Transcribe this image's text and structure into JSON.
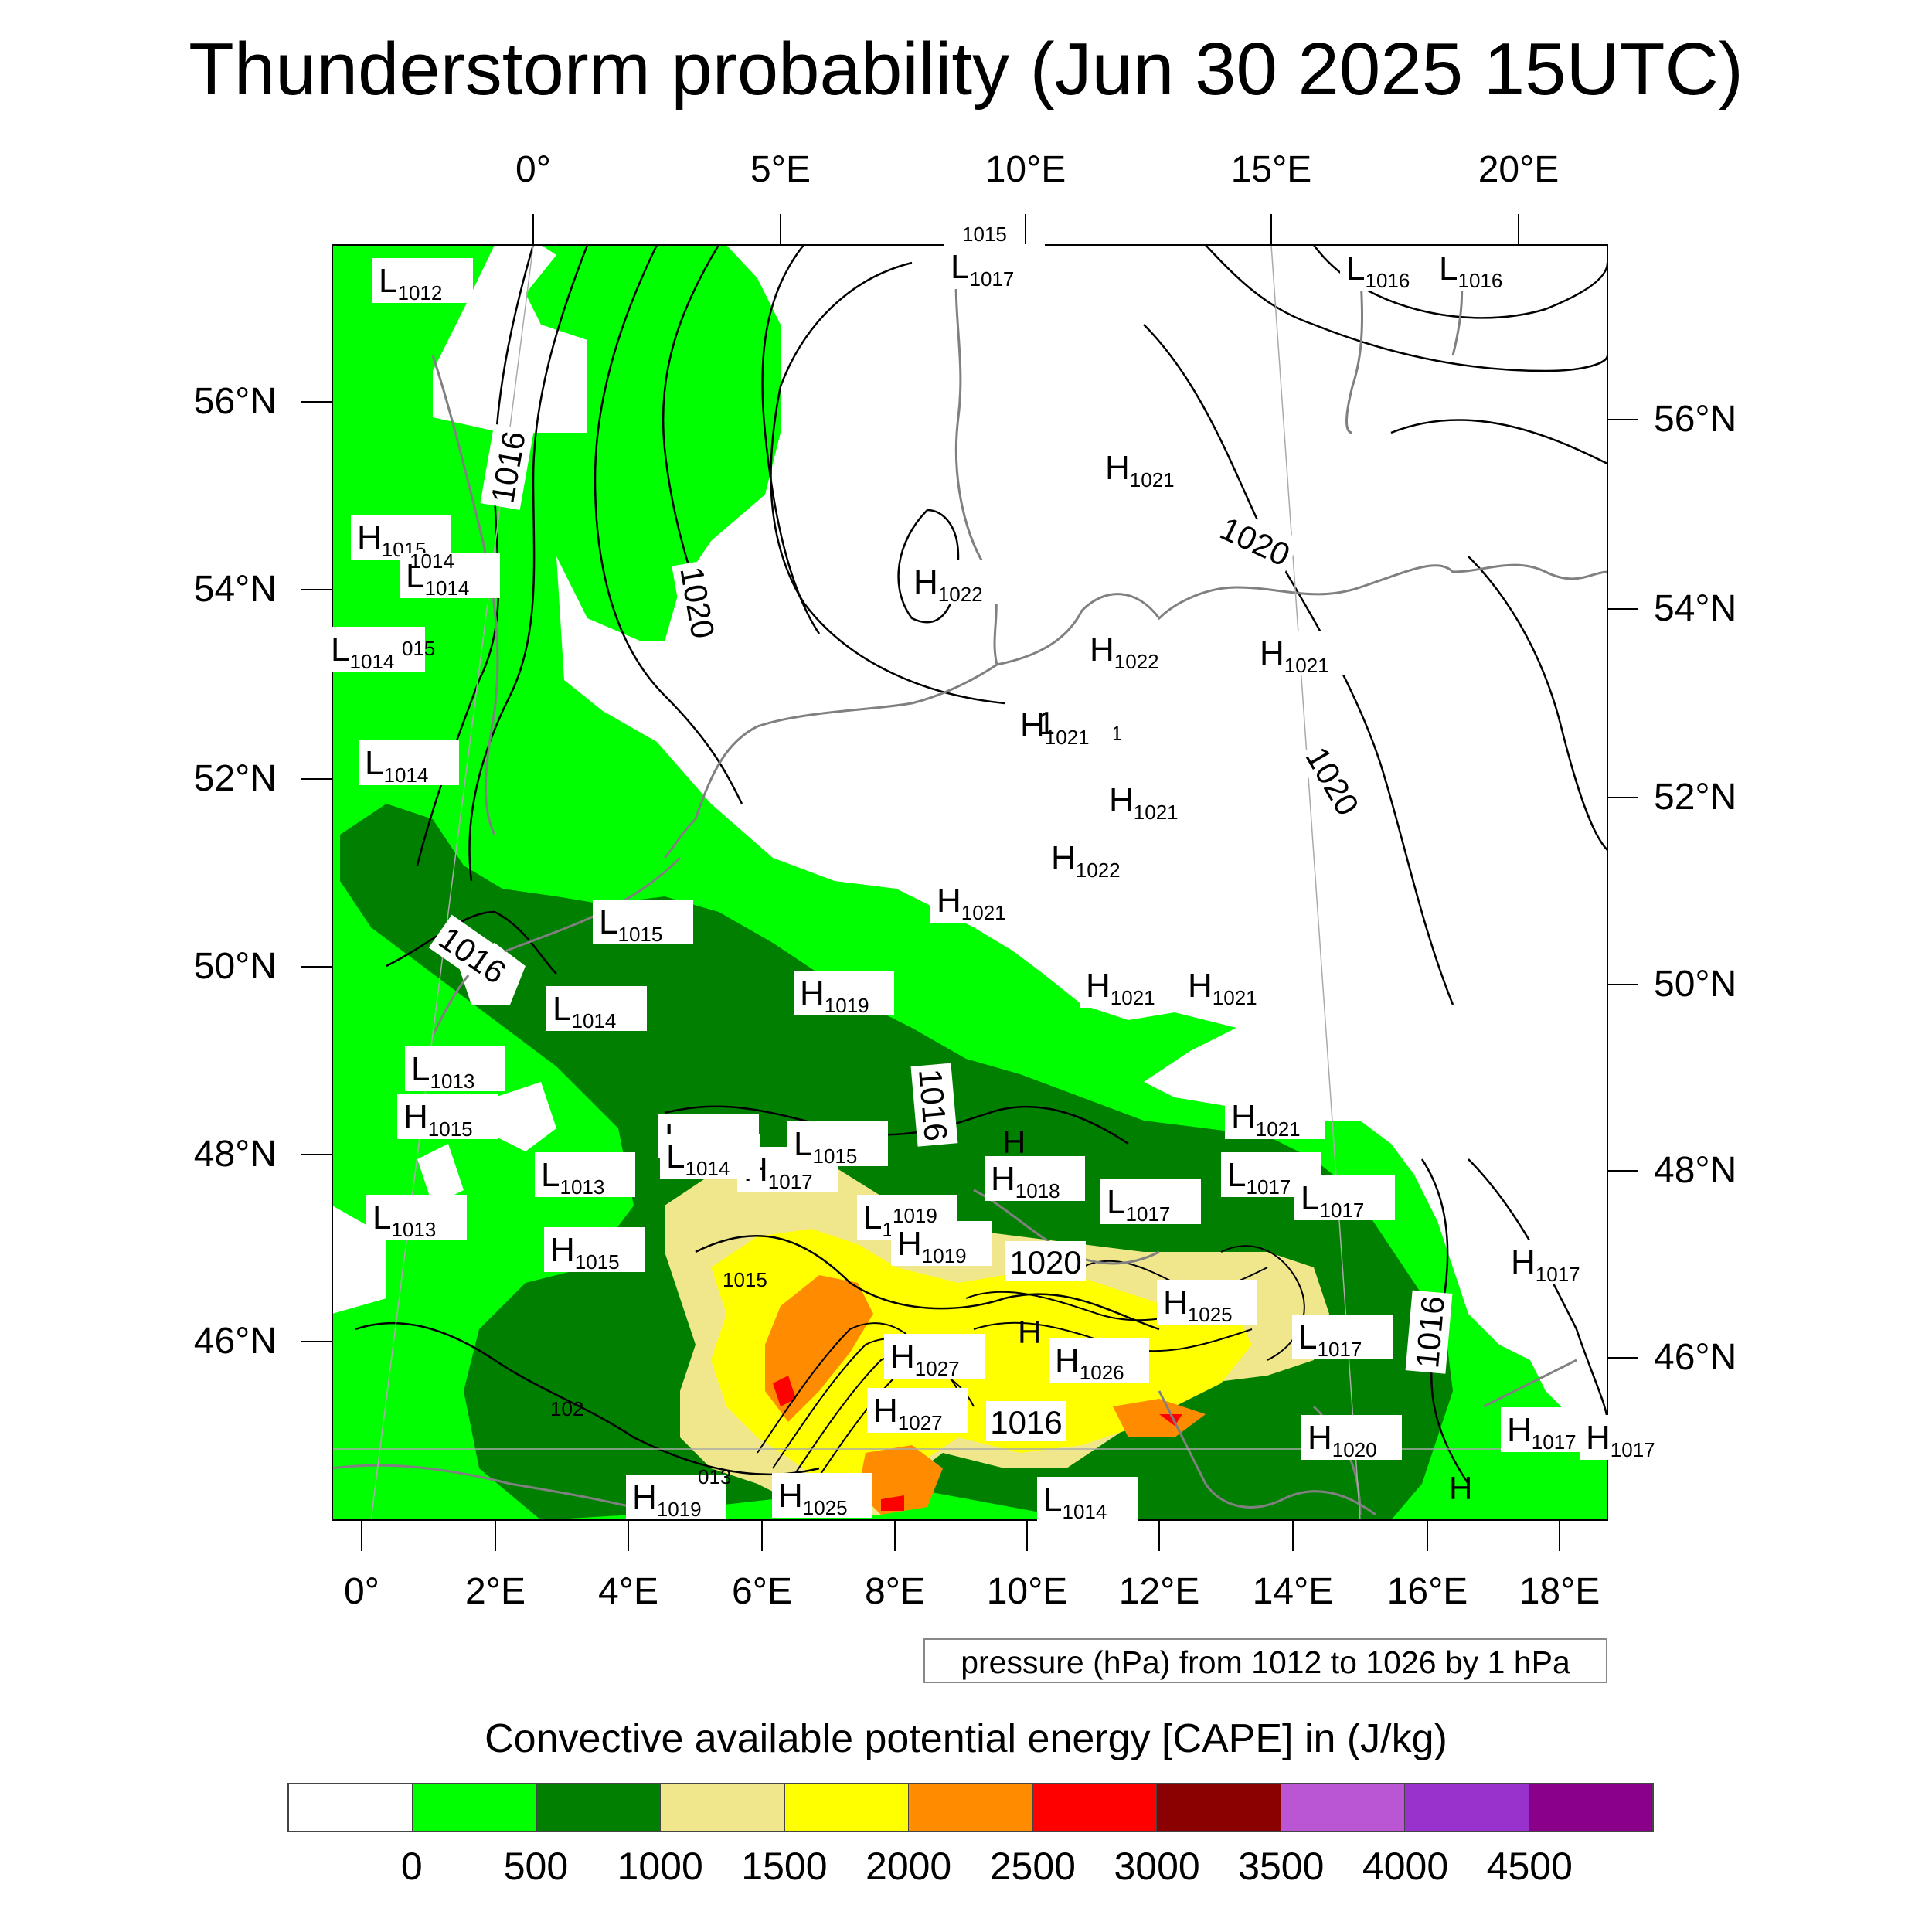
{
  "title": "Thunderstorm probability (Jun 30 2025 15UTC)",
  "axes": {
    "top_lon_labels": [
      "0°",
      "5°E",
      "10°E",
      "15°E",
      "20°E"
    ],
    "bottom_lon_labels": [
      "0°",
      "2°E",
      "4°E",
      "6°E",
      "8°E",
      "10°E",
      "12°E",
      "14°E",
      "16°E",
      "18°E"
    ],
    "left_lat_labels": [
      "56°N",
      "54°N",
      "52°N",
      "50°N",
      "48°N",
      "46°N"
    ],
    "right_lat_labels": [
      "56°N",
      "54°N",
      "52°N",
      "50°N",
      "48°N",
      "46°N"
    ]
  },
  "pressure_note": "pressure (hPa) from 1012 to 1026 by 1 hPa",
  "colorbar": {
    "title": "Convective available potential energy [CAPE] in (J/kg)",
    "colors": [
      "#ffffff",
      "#00ff00",
      "#007f00",
      "#f0e68c",
      "#ffff00",
      "#ff8c00",
      "#ff0000",
      "#8b0000",
      "#ba55d3",
      "#9932cc",
      "#8b008b"
    ],
    "ticks": [
      "0",
      "500",
      "1000",
      "1500",
      "2000",
      "2500",
      "3000",
      "3500",
      "4000",
      "4500"
    ]
  },
  "isobar_labels": [
    "1016",
    "1020",
    "1020",
    "1020",
    "1016",
    "1016",
    "1020",
    "1016",
    "1016"
  ],
  "pressure_centers": [
    {
      "t": "L",
      "v": "1012"
    },
    {
      "t": "H",
      "v": "1015"
    },
    {
      "t": "L",
      "v": "1014"
    },
    {
      "t": "L",
      "v": "1014"
    },
    {
      "t": "L",
      "v": "1014"
    },
    {
      "t": "L",
      "v": "1015"
    },
    {
      "t": "L",
      "v": "1014"
    },
    {
      "t": "L",
      "v": "1013"
    },
    {
      "t": "H",
      "v": "1015"
    },
    {
      "t": "L",
      "v": "1013"
    },
    {
      "t": "L",
      "v": "1013"
    },
    {
      "t": "H",
      "v": "1015"
    },
    {
      "t": "L",
      "v": "1014"
    },
    {
      "t": "H",
      "v": "1017"
    },
    {
      "t": "L",
      "v": "1015"
    },
    {
      "t": "H",
      "v": "1019"
    },
    {
      "t": "H",
      "v": "1021"
    },
    {
      "t": "H",
      "v": "1022"
    },
    {
      "t": "H",
      "v": "1022"
    },
    {
      "t": "L",
      "v": "1021"
    },
    {
      "t": "H",
      "v": "1021"
    },
    {
      "t": "H",
      "v": "1022"
    },
    {
      "t": "H",
      "v": "1021"
    },
    {
      "t": "H",
      "v": "1021"
    },
    {
      "t": "H",
      "v": "1021"
    },
    {
      "t": "H",
      "v": "1021"
    },
    {
      "t": "H",
      "v": "1021"
    },
    {
      "t": "L",
      "v": "1017"
    },
    {
      "t": "L",
      "v": "1016"
    },
    {
      "t": "L",
      "v": "1016"
    },
    {
      "t": "H",
      "v": "1018"
    },
    {
      "t": "L",
      "v": "1017"
    },
    {
      "t": "H",
      "v": "1021"
    },
    {
      "t": "L",
      "v": "1017"
    },
    {
      "t": "L",
      "v": "1017"
    },
    {
      "t": "H",
      "v": "1017"
    },
    {
      "t": "H",
      "v": "1025"
    },
    {
      "t": "L",
      "v": "1017"
    },
    {
      "t": "H",
      "v": "1026"
    },
    {
      "t": "H",
      "v": "1027"
    },
    {
      "t": "H",
      "v": "1027"
    },
    {
      "t": "H",
      "v": "1025"
    },
    {
      "t": "L",
      "v": "1014"
    },
    {
      "t": "H",
      "v": "1020"
    },
    {
      "t": "H",
      "v": "1017"
    },
    {
      "t": "H",
      "v": "1017"
    },
    {
      "t": "L",
      "v": "1015"
    },
    {
      "t": "L",
      "v": "1014"
    },
    {
      "t": "H",
      "v": "1019"
    },
    {
      "t": "H",
      "v": "1019"
    }
  ],
  "partial_labels": [
    "015",
    "1014",
    "1019",
    "1015",
    "013",
    "1015",
    "H",
    "H",
    "102",
    "H",
    "1"
  ]
}
